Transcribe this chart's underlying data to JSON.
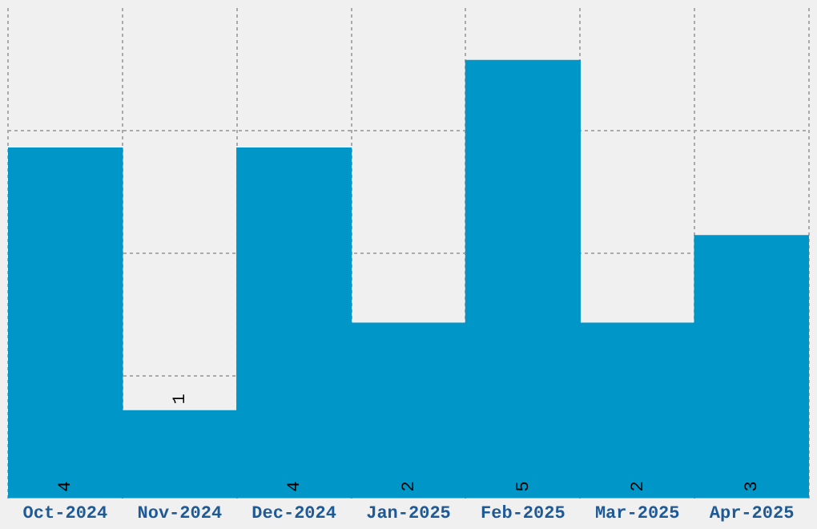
{
  "chart_data": {
    "type": "bar",
    "categories": [
      "Oct-2024",
      "Nov-2024",
      "Dec-2024",
      "Jan-2025",
      "Feb-2025",
      "Mar-2025",
      "Apr-2025"
    ],
    "values": [
      4,
      1,
      4,
      2,
      5,
      2,
      3
    ],
    "color": "#0096c8",
    "data_labels": true,
    "grid": true,
    "tick_labels": "x",
    "ylim": [
      0,
      5.6
    ],
    "yticks": [
      {
        "value": 1.4,
        "label": null
      },
      {
        "value": 2.8,
        "label": null
      },
      {
        "value": 4.2,
        "label": null
      }
    ]
  }
}
